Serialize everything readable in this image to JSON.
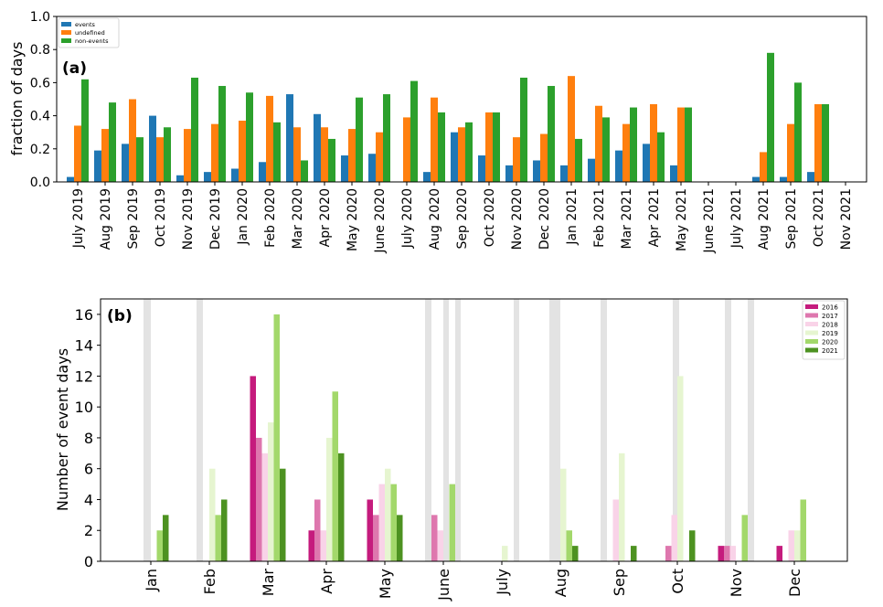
{
  "chart_data": [
    {
      "type": "bar",
      "panel_label": "(a)",
      "ylabel": "fraction of days",
      "xlabel": "",
      "ylim": [
        0,
        1.0
      ],
      "yticks": [
        "0.0",
        "0.2",
        "0.4",
        "0.6",
        "0.8",
        "1.0"
      ],
      "grid": false,
      "legend_position": "top-left",
      "categories": [
        "July 2019",
        "Aug 2019",
        "Sep 2019",
        "Oct 2019",
        "Nov 2019",
        "Dec 2019",
        "Jan 2020",
        "Feb 2020",
        "Mar 2020",
        "Apr 2020",
        "May 2020",
        "June 2020",
        "July 2020",
        "Aug 2020",
        "Sep 2020",
        "Oct 2020",
        "Nov 2020",
        "Dec 2020",
        "Jan 2021",
        "Feb 2021",
        "Mar 2021",
        "Apr 2021",
        "May 2021",
        "June 2021",
        "July 2021",
        "Aug 2021",
        "Sep 2021",
        "Oct 2021",
        "Nov 2021"
      ],
      "series": [
        {
          "name": "events",
          "color": "#1f77b4",
          "values": [
            0.03,
            0.19,
            0.23,
            0.4,
            0.04,
            0.06,
            0.08,
            0.12,
            0.53,
            0.41,
            0.16,
            0.17,
            0.0,
            0.06,
            0.3,
            0.16,
            0.1,
            0.13,
            0.1,
            0.14,
            0.19,
            0.23,
            0.1,
            0.0,
            0.0,
            0.03,
            0.03,
            0.06,
            0.0
          ]
        },
        {
          "name": "undefined",
          "color": "#ff7f0e",
          "values": [
            0.34,
            0.32,
            0.5,
            0.27,
            0.32,
            0.35,
            0.37,
            0.52,
            0.33,
            0.33,
            0.32,
            0.3,
            0.39,
            0.51,
            0.33,
            0.42,
            0.27,
            0.29,
            0.64,
            0.46,
            0.35,
            0.47,
            0.45,
            0.0,
            0.0,
            0.18,
            0.35,
            0.47,
            0.0
          ]
        },
        {
          "name": "non-events",
          "color": "#2ca02c",
          "values": [
            0.62,
            0.48,
            0.27,
            0.33,
            0.63,
            0.58,
            0.54,
            0.36,
            0.13,
            0.26,
            0.51,
            0.53,
            0.61,
            0.42,
            0.36,
            0.42,
            0.63,
            0.58,
            0.26,
            0.39,
            0.45,
            0.3,
            0.45,
            0.0,
            0.0,
            0.78,
            0.6,
            0.47,
            0.0
          ]
        }
      ]
    },
    {
      "type": "bar",
      "panel_label": "(b)",
      "ylabel": "Number of event days",
      "xlabel": "",
      "ylim": [
        0,
        17
      ],
      "yticks": [
        "0",
        "2",
        "4",
        "6",
        "8",
        "10",
        "12",
        "14",
        "16"
      ],
      "grid": false,
      "legend_position": "top-right",
      "categories": [
        "Jan",
        "Feb",
        "Mar",
        "Apr",
        "May",
        "June",
        "July",
        "Aug",
        "Sep",
        "Oct",
        "Nov",
        "Dec"
      ],
      "series": [
        {
          "name": "2016",
          "color": "#c51b7d",
          "values": [
            0,
            0,
            12,
            2,
            4,
            0,
            0,
            0,
            0,
            0,
            1,
            1
          ]
        },
        {
          "name": "2017",
          "color": "#de77ae",
          "values": [
            0,
            0,
            8,
            4,
            3,
            3,
            0,
            0,
            0,
            1,
            1,
            0
          ]
        },
        {
          "name": "2018",
          "color": "#f9d3e8",
          "values": [
            0,
            0,
            7,
            2,
            5,
            2,
            0,
            0,
            4,
            3,
            1,
            2
          ]
        },
        {
          "name": "2019",
          "color": "#e6f5d0",
          "values": [
            0,
            6,
            9,
            8,
            6,
            0,
            1,
            6,
            7,
            12,
            0,
            2
          ]
        },
        {
          "name": "2020",
          "color": "#a3d86b",
          "values": [
            2,
            3,
            16,
            11,
            5,
            5,
            0,
            2,
            0,
            0,
            3,
            4
          ]
        },
        {
          "name": "2021",
          "color": "#4d9221",
          "values": [
            3,
            4,
            6,
            7,
            3,
            0,
            0,
            1,
            1,
            2,
            0,
            0
          ]
        }
      ]
    }
  ]
}
